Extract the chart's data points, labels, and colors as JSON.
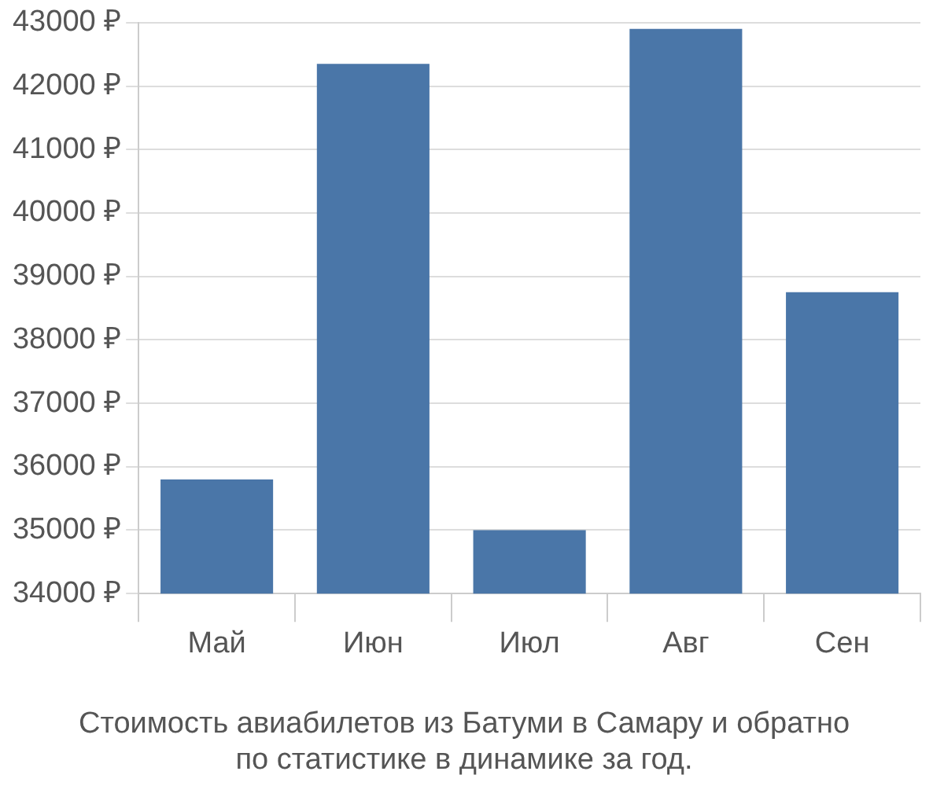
{
  "chart_data": {
    "type": "bar",
    "title": "Стоимость авиабилетов из Батуми в Самару и обратно\nпо статистике в динамике за год.",
    "categories": [
      "Май",
      "Июн",
      "Июл",
      "Авг",
      "Сен"
    ],
    "values": [
      35800,
      42350,
      35000,
      42900,
      38750
    ],
    "color": "#4a76a8",
    "ylim": [
      34000,
      43000
    ],
    "yticks": [
      {
        "value": 34000,
        "label": "34000 ₽"
      },
      {
        "value": 35000,
        "label": "35000 ₽"
      },
      {
        "value": 36000,
        "label": "36000 ₽"
      },
      {
        "value": 37000,
        "label": "37000 ₽"
      },
      {
        "value": 38000,
        "label": "38000 ₽"
      },
      {
        "value": 39000,
        "label": "39000 ₽"
      },
      {
        "value": 40000,
        "label": "40000 ₽"
      },
      {
        "value": 41000,
        "label": "41000 ₽"
      },
      {
        "value": 42000,
        "label": "42000 ₽"
      },
      {
        "value": 43000,
        "label": "43000 ₽"
      }
    ],
    "grid": "y"
  }
}
